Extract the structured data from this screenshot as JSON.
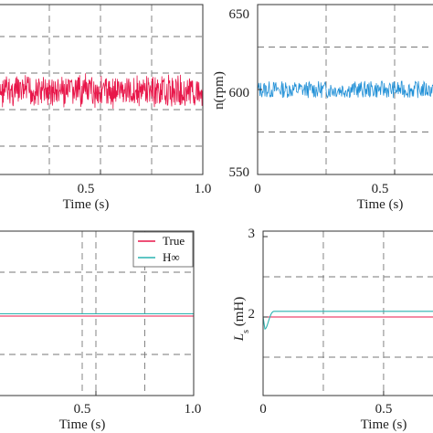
{
  "chart_data": [
    {
      "type": "line",
      "panel": "top-left",
      "xlabel": "Time (s)",
      "ylabel": "",
      "xlim": [
        0,
        1.0
      ],
      "xticks": [
        0.5,
        1.0
      ],
      "xtick_labels": [
        "0.5",
        "1.0"
      ],
      "grid": true,
      "series": [
        {
          "color": "#e8174a",
          "description": "dense noisy signal band",
          "mean": 0,
          "amplitude": 1
        }
      ]
    },
    {
      "type": "line",
      "panel": "top-right",
      "xlabel": "Time (s)",
      "ylabel": "n(rpm)",
      "xlim": [
        0,
        1.0
      ],
      "ylim": [
        550,
        650
      ],
      "xticks": [
        0,
        0.5
      ],
      "xtick_labels": [
        "0",
        "0.5"
      ],
      "yticks": [
        550,
        600,
        650
      ],
      "ytick_labels": [
        "550",
        "600",
        "650"
      ],
      "grid": true,
      "series": [
        {
          "color": "#1f8fd6",
          "mean": 600,
          "amplitude": 5
        }
      ]
    },
    {
      "type": "line",
      "panel": "bottom-left",
      "xlabel": "Time (s)",
      "ylabel": "",
      "xlim": [
        0,
        1.0
      ],
      "xticks": [
        0.5,
        1.0
      ],
      "xtick_labels": [
        "0.5",
        "1.0"
      ],
      "grid": true,
      "legend": "top-right",
      "series": [
        {
          "name": "True",
          "color": "#e8174a",
          "level": 0
        },
        {
          "name": "H∞",
          "color": "#2ab3b0",
          "level": 0.05
        }
      ]
    },
    {
      "type": "line",
      "panel": "bottom-right",
      "xlabel": "Time (s)",
      "ylabel_main": "L",
      "ylabel_sub": "s",
      "ylabel_unit": " (mH)",
      "xlim": [
        0,
        1.0
      ],
      "ylim": [
        1,
        3
      ],
      "xticks": [
        0,
        0.5
      ],
      "xtick_labels": [
        "0",
        "0.5"
      ],
      "yticks": [
        2,
        3
      ],
      "ytick_labels": [
        "2",
        "3"
      ],
      "grid": true,
      "series": [
        {
          "name": "True",
          "color": "#e8174a",
          "level": 2.0
        },
        {
          "name": "H∞",
          "color": "#2ab3b0",
          "level": 2.07,
          "transient_start": 1.85
        }
      ]
    }
  ]
}
